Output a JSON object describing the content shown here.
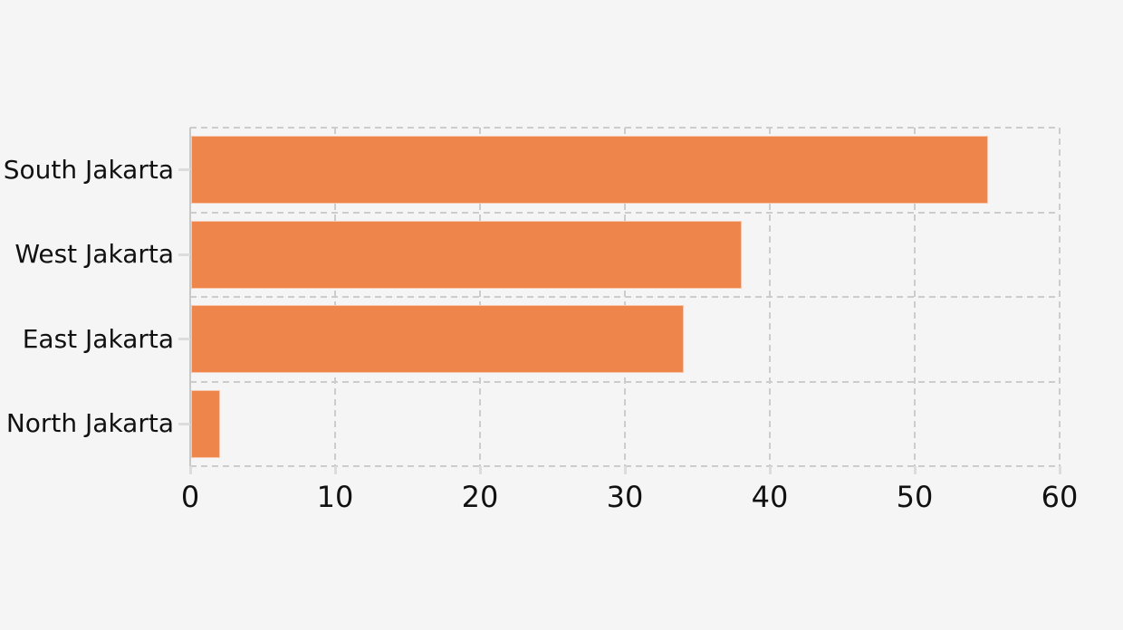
{
  "chart_data": {
    "type": "bar",
    "orientation": "horizontal",
    "title": "",
    "xlabel": "",
    "ylabel": "",
    "categories": [
      "South Jakarta",
      "West Jakarta",
      "East Jakarta",
      "North Jakarta"
    ],
    "values": [
      55,
      38,
      34,
      2
    ],
    "xlim": [
      0,
      60
    ],
    "xticks": [
      0,
      10,
      20,
      30,
      40,
      50,
      60
    ],
    "grid": true,
    "grid_style": "dashed",
    "legend": false,
    "colors": {
      "bar": "#EE854A",
      "background": "#f5f5f5",
      "grid": "#cccccc",
      "axis_line": "#c8c8c8",
      "tick_mark": "#dcdcdc",
      "text": "#111111"
    }
  }
}
